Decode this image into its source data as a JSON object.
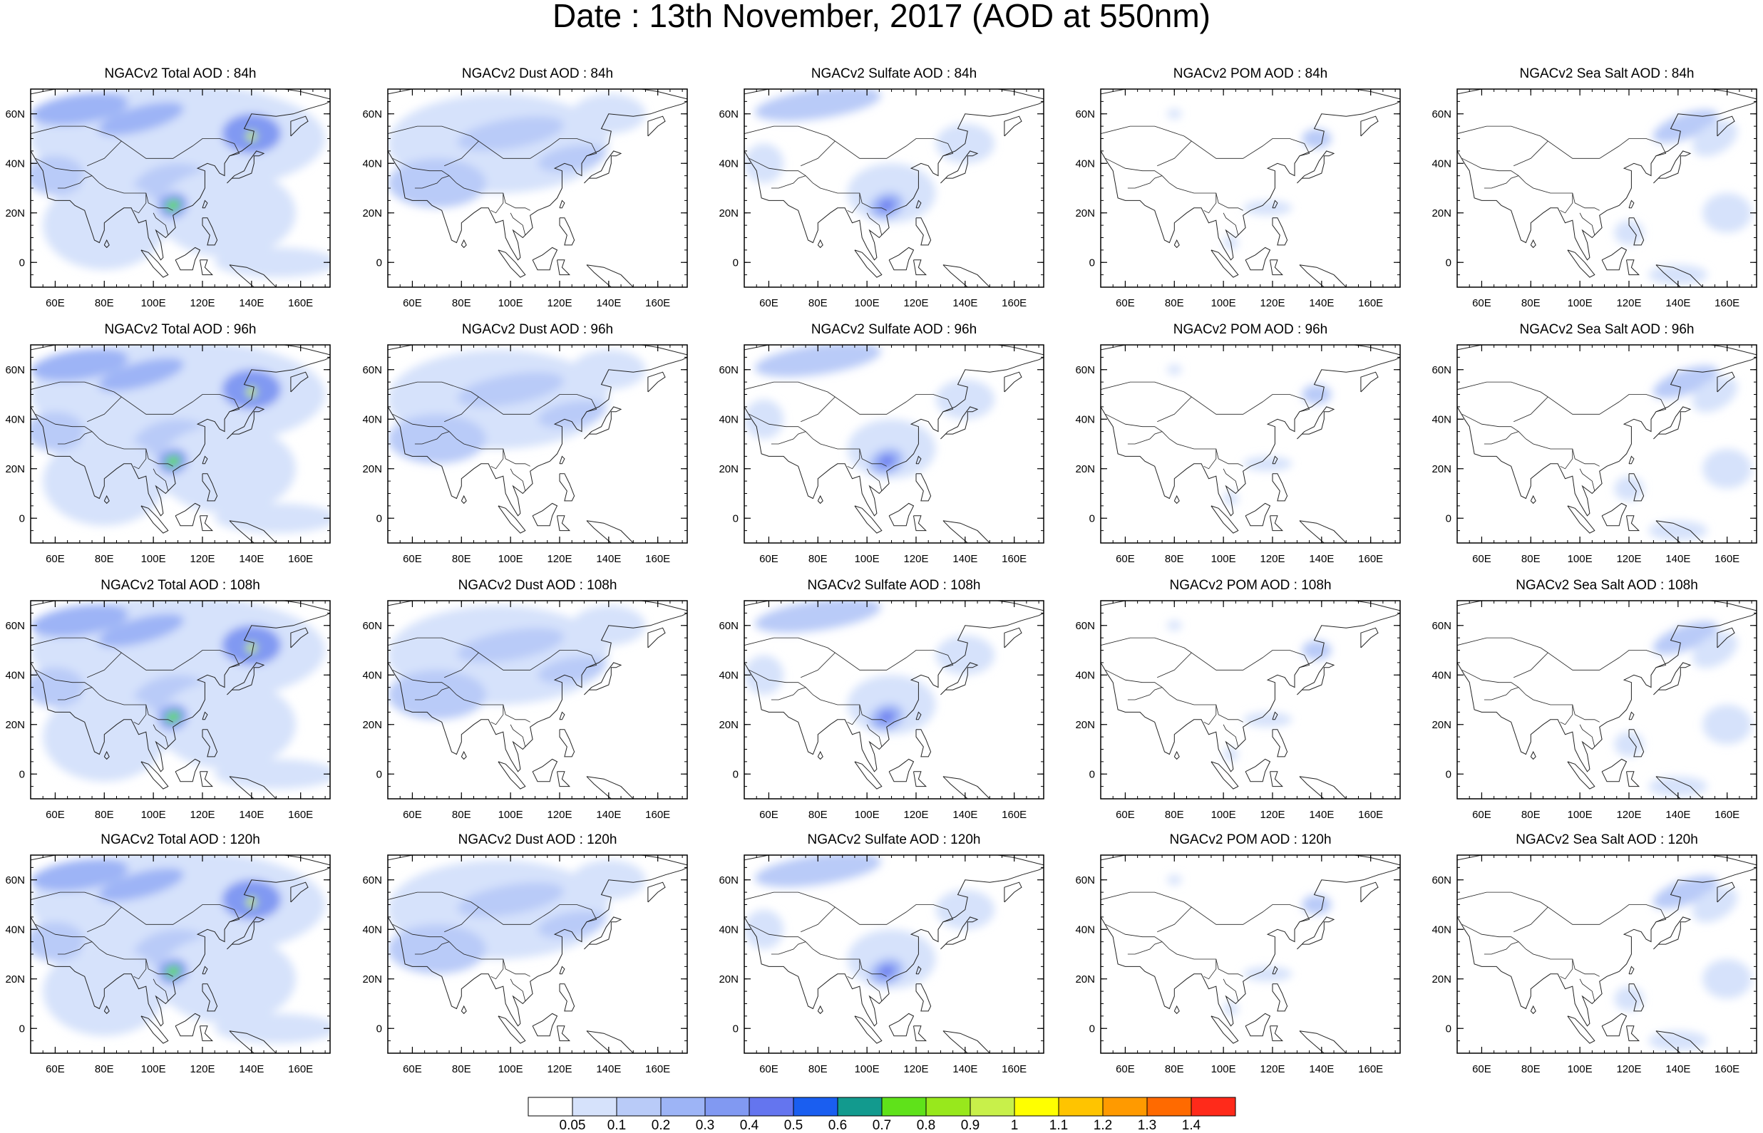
{
  "title": "Date : 13th November, 2017 (AOD at 550nm)",
  "map_axes": {
    "lat_labels": [
      "60N",
      "40N",
      "20N",
      "0"
    ],
    "lat_values": [
      60,
      40,
      20,
      0
    ],
    "lon_labels": [
      "60E",
      "80E",
      "100E",
      "120E",
      "140E",
      "160E"
    ],
    "lon_values": [
      60,
      80,
      100,
      120,
      140,
      160
    ],
    "lon_range": [
      50,
      172
    ],
    "lat_range": [
      -10,
      70
    ]
  },
  "panels": [
    {
      "title": "NGACv2 Total AOD : 84h",
      "species": "total"
    },
    {
      "title": "NGACv2 Dust AOD : 84h",
      "species": "dust"
    },
    {
      "title": "NGACv2 Sulfate AOD : 84h",
      "species": "sulfate"
    },
    {
      "title": "NGACv2 POM AOD : 84h",
      "species": "pom"
    },
    {
      "title": "NGACv2 Sea Salt AOD : 84h",
      "species": "seasalt"
    },
    {
      "title": "NGACv2 Total AOD : 96h",
      "species": "total"
    },
    {
      "title": "NGACv2 Dust AOD : 96h",
      "species": "dust"
    },
    {
      "title": "NGACv2 Sulfate AOD : 96h",
      "species": "sulfate"
    },
    {
      "title": "NGACv2 POM AOD : 96h",
      "species": "pom"
    },
    {
      "title": "NGACv2 Sea Salt AOD : 96h",
      "species": "seasalt"
    },
    {
      "title": "NGACv2 Total AOD : 108h",
      "species": "total"
    },
    {
      "title": "NGACv2 Dust AOD : 108h",
      "species": "dust"
    },
    {
      "title": "NGACv2 Sulfate AOD : 108h",
      "species": "sulfate"
    },
    {
      "title": "NGACv2 POM AOD : 108h",
      "species": "pom"
    },
    {
      "title": "NGACv2 Sea Salt AOD : 108h",
      "species": "seasalt"
    },
    {
      "title": "NGACv2 Total AOD : 120h",
      "species": "total"
    },
    {
      "title": "NGACv2 Dust AOD : 120h",
      "species": "dust"
    },
    {
      "title": "NGACv2 Sulfate AOD : 120h",
      "species": "sulfate"
    },
    {
      "title": "NGACv2 POM AOD : 120h",
      "species": "pom"
    },
    {
      "title": "NGACv2 Sea Salt  AOD : 120h",
      "species": "seasalt"
    }
  ],
  "colorbar": {
    "labels": [
      "0.05",
      "0.1",
      "0.2",
      "0.3",
      "0.4",
      "0.5",
      "0.6",
      "0.7",
      "0.8",
      "0.9",
      "1",
      "1.1",
      "1.2",
      "1.3",
      "1.4"
    ],
    "colors": [
      "#ffffff",
      "#d6e2fb",
      "#b9cbf8",
      "#9db4f6",
      "#8199f2",
      "#6475ef",
      "#1a5ef0",
      "#129a8e",
      "#5fe21a",
      "#98e81c",
      "#c8f04a",
      "#ffff00",
      "#ffc400",
      "#ff9a00",
      "#ff6a00",
      "#ff2a1a"
    ]
  }
}
